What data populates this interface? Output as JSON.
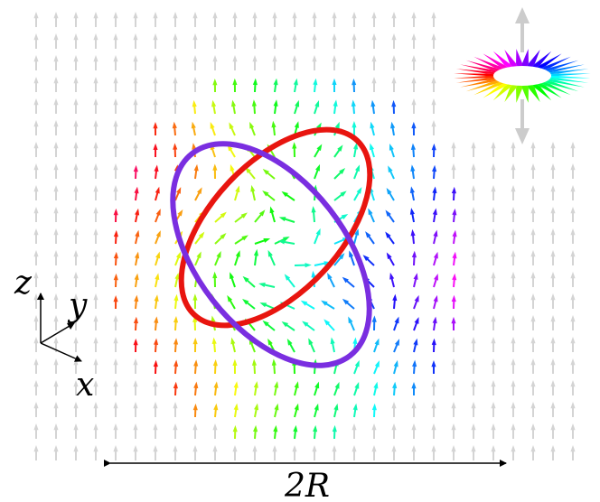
{
  "axes": {
    "z": "z",
    "y": "y",
    "x": "x"
  },
  "scale_label": "2R"
}
